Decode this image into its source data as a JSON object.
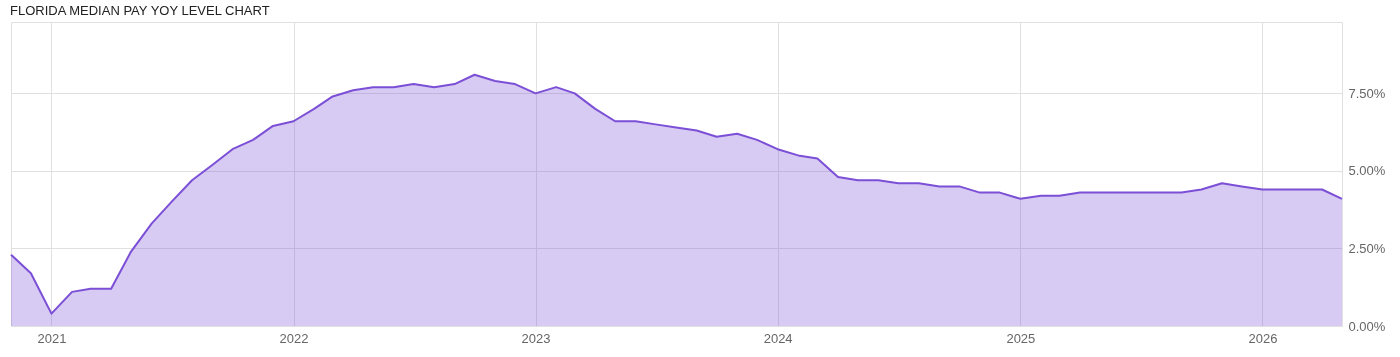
{
  "chart_data": {
    "type": "area",
    "title": "FLORIDA MEDIAN PAY YOY LEVEL CHART",
    "x": [
      "2020-11",
      "2020-12",
      "2021-01",
      "2021-02",
      "2021-03",
      "2021-04",
      "2021-05",
      "2021-06",
      "2021-07",
      "2021-08",
      "2021-09",
      "2021-10",
      "2021-11",
      "2021-12",
      "2022-01",
      "2022-02",
      "2022-03",
      "2022-04",
      "2022-05",
      "2022-06",
      "2022-07",
      "2022-08",
      "2022-09",
      "2022-10",
      "2022-11",
      "2022-12",
      "2023-01",
      "2023-02",
      "2023-03",
      "2023-04",
      "2023-05",
      "2023-06",
      "2023-07",
      "2023-08",
      "2023-09",
      "2023-10",
      "2023-11",
      "2023-12",
      "2024-01",
      "2024-02",
      "2024-03",
      "2024-04",
      "2024-05",
      "2024-06",
      "2024-07",
      "2024-08",
      "2024-09",
      "2024-10",
      "2024-11",
      "2024-12",
      "2025-01",
      "2025-02",
      "2025-03",
      "2025-04",
      "2025-05",
      "2025-06",
      "2025-07",
      "2025-08",
      "2025-09",
      "2025-10",
      "2025-11",
      "2025-12",
      "2026-01",
      "2026-02",
      "2026-03",
      "2026-04",
      "2026-05"
    ],
    "series": [
      {
        "color": "#7b4fd6",
        "values": [
          2.3,
          1.7,
          0.4,
          1.1,
          1.2,
          1.2,
          2.4,
          3.3,
          4.0,
          4.7,
          5.2,
          5.7,
          6.0,
          6.45,
          6.6,
          7.0,
          7.4,
          7.6,
          7.7,
          7.7,
          7.8,
          7.7,
          7.8,
          8.1,
          7.9,
          7.8,
          7.5,
          7.7,
          7.5,
          7.0,
          6.6,
          6.6,
          6.5,
          6.4,
          6.3,
          6.1,
          6.2,
          6.0,
          5.7,
          5.5,
          5.4,
          4.8,
          4.7,
          4.7,
          4.6,
          4.6,
          4.5,
          4.5,
          4.3,
          4.3,
          4.1,
          4.2,
          4.2,
          4.3,
          4.3,
          4.3,
          4.3,
          4.3,
          4.3,
          4.4,
          4.6,
          4.5,
          4.4,
          4.4,
          4.4,
          4.4,
          4.1
        ]
      }
    ],
    "xlim": [
      "2020-11",
      "2026-05"
    ],
    "xticks": [
      "2021",
      "2022",
      "2023",
      "2024",
      "2025",
      "2026"
    ],
    "ylim": [
      0,
      9.8
    ],
    "yticks": [
      {
        "value": 0,
        "label": "0.00%"
      },
      {
        "value": 2.5,
        "label": "2.50%"
      },
      {
        "value": 5,
        "label": "5.00%"
      },
      {
        "value": 7.5,
        "label": "7.50%"
      }
    ],
    "grid": true
  }
}
